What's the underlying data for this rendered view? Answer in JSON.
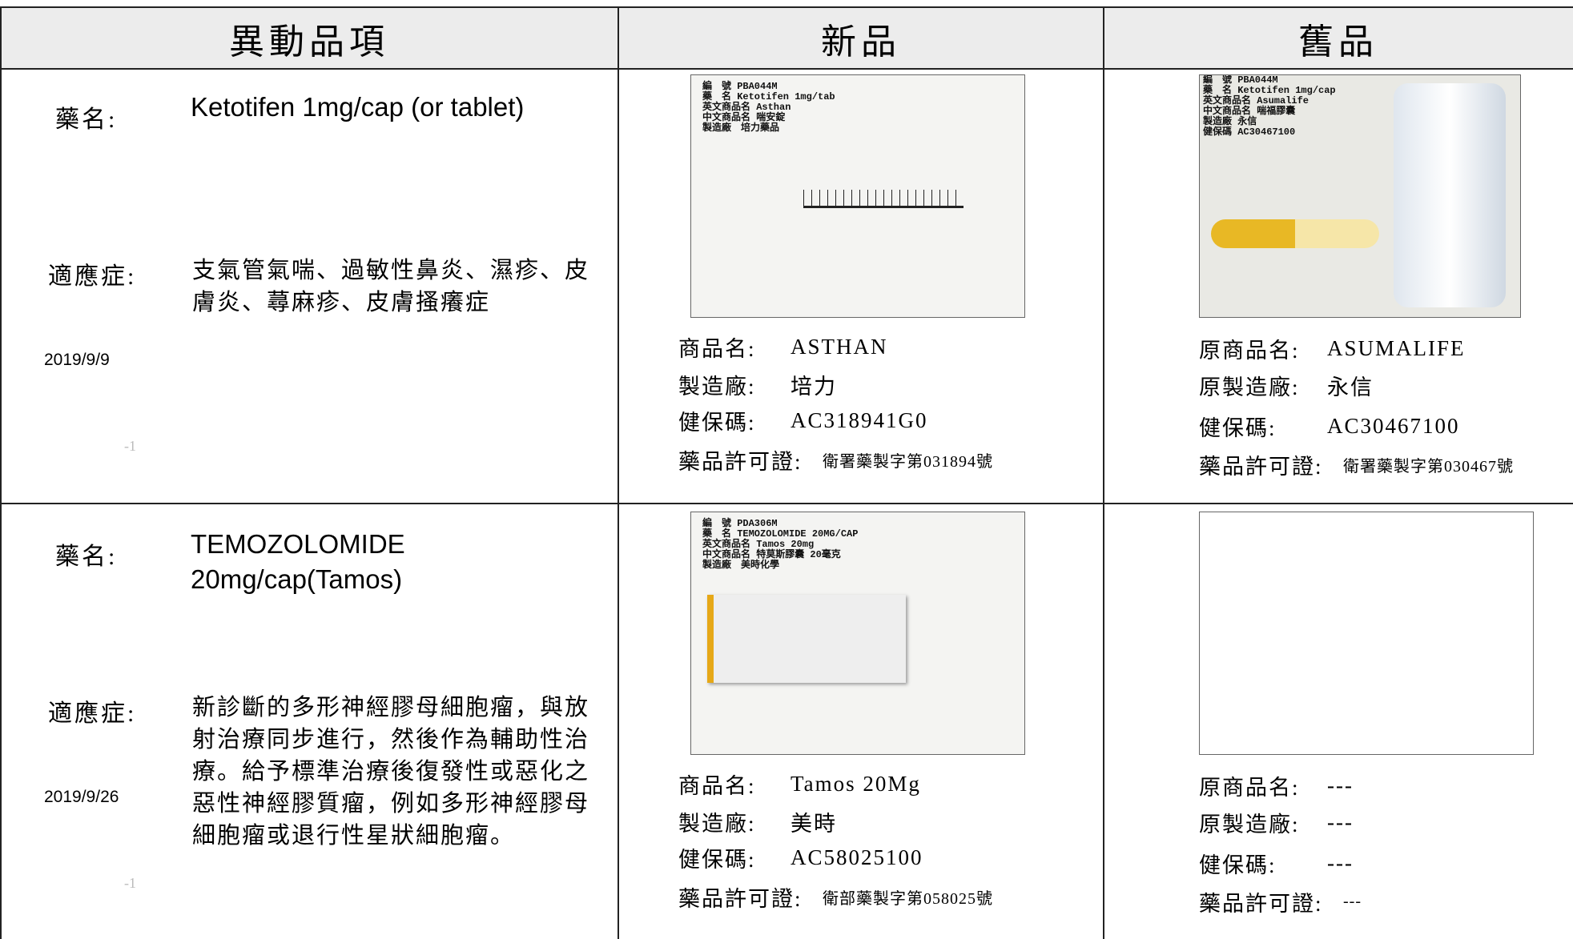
{
  "header": {
    "columns": [
      "異動品項",
      "新品",
      "舊品"
    ]
  },
  "rows": [
    {
      "drug_label": "藥名:",
      "drug_name": "Ketotifen 1mg/cap (or tablet)",
      "indication_label": "適應症:",
      "indication": "支氣管氣喘、過敏性鼻炎、濕疹、皮膚炎、蕁麻疹、皮膚搔癢症",
      "date": "2019/9/9",
      "note": "-1",
      "new": {
        "photo_caption": [
          "編　號 PBA044M",
          "藥　名 Ketotifen 1mg/tab",
          "英文商品名 Asthan",
          "中文商品名 喘安錠",
          "製造廠　培力藥品"
        ],
        "fields": [
          {
            "label": "商品名:",
            "value": "ASTHAN"
          },
          {
            "label": "製造廠:",
            "value": "培力"
          },
          {
            "label": "健保碼:",
            "value": "AC318941G0"
          },
          {
            "label": "藥品許可證:",
            "value": "衛署藥製字第031894號"
          }
        ]
      },
      "old": {
        "photo_caption": [
          "編　號 PBA044M",
          "藥　名 Ketotifen 1mg/cap",
          "英文商品名 Asumalife",
          "中文商品名 喘福膠囊",
          "製造廠 永信",
          "健保碼 AC30467100"
        ],
        "fields": [
          {
            "label": "原商品名:",
            "value": "ASUMALIFE"
          },
          {
            "label": "原製造廠:",
            "value": "永信"
          },
          {
            "label": "健保碼:",
            "value": "AC30467100"
          },
          {
            "label": "藥品許可證:",
            "value": "衛署藥製字第030467號"
          }
        ]
      }
    },
    {
      "drug_label": "藥名:",
      "drug_name": "TEMOZOLOMIDE 20mg/cap(Tamos)",
      "indication_label": "適應症:",
      "indication": "新診斷的多形神經膠母細胞瘤，與放射治療同步進行，然後作為輔助性治療。給予標準治療後復發性或惡化之惡性神經膠質瘤，例如多形神經膠母細胞瘤或退行性星狀細胞瘤。",
      "date": "2019/9/26",
      "note": "-1",
      "new": {
        "photo_caption": [
          "編　號 PDA306M",
          "藥　名 TEMOZOLOMIDE 20MG/CAP",
          "英文商品名 Tamos 20mg",
          "中文商品名 特莫斯膠囊 20毫克",
          "製造廠　美時化學"
        ],
        "fields": [
          {
            "label": "商品名:",
            "value": "Tamos 20Mg"
          },
          {
            "label": "製造廠:",
            "value": "美時"
          },
          {
            "label": "健保碼:",
            "value": "AC58025100"
          },
          {
            "label": "藥品許可證:",
            "value": "衛部藥製字第058025號"
          }
        ]
      },
      "old": {
        "photo_caption": [],
        "fields": [
          {
            "label": "原商品名:",
            "value": "---"
          },
          {
            "label": "原製造廠:",
            "value": "---"
          },
          {
            "label": "健保碼:",
            "value": "---"
          },
          {
            "label": "藥品許可證:",
            "value": "---"
          }
        ]
      }
    }
  ]
}
